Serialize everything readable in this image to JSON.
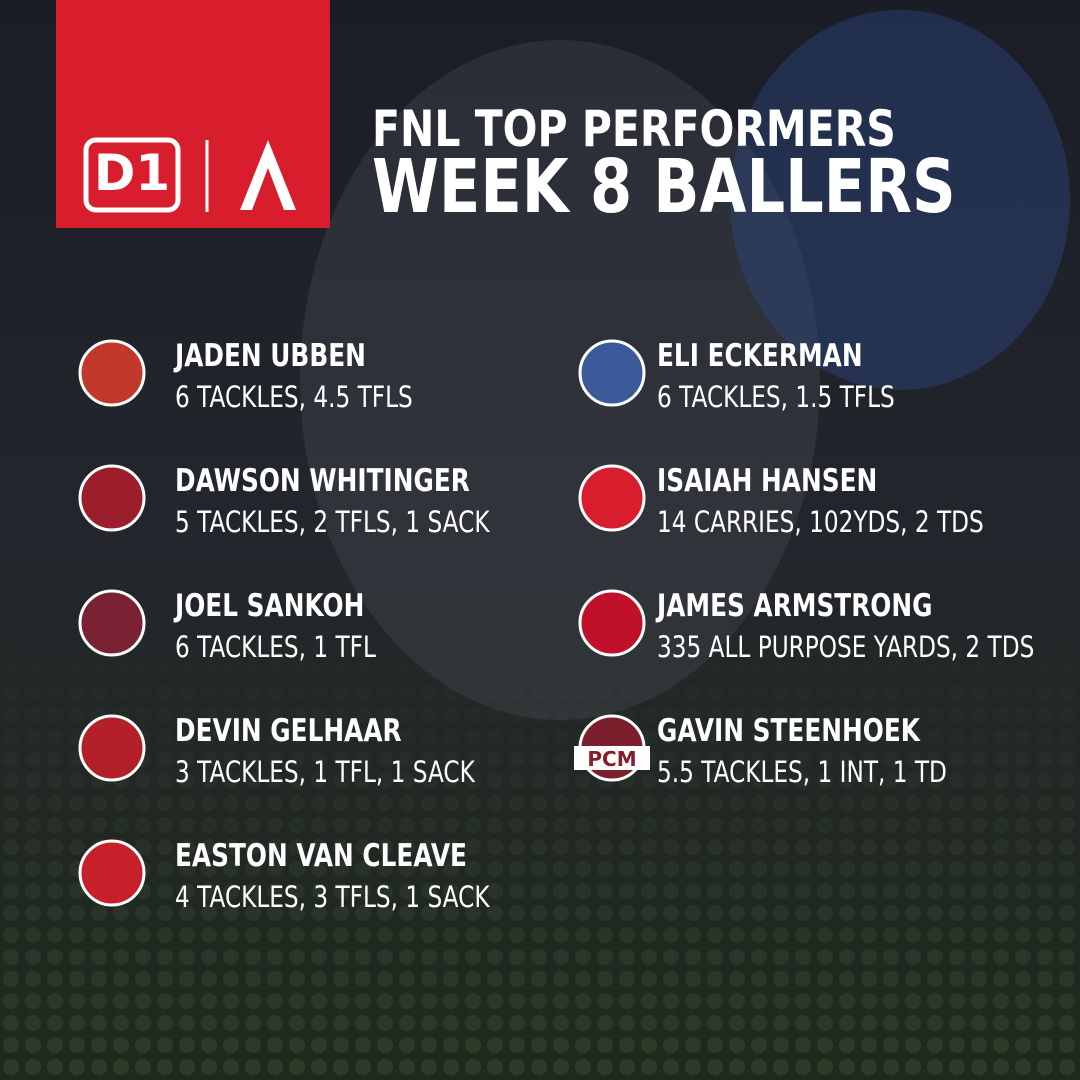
{
  "header": {
    "brand": "D1",
    "title_line1": "FNL TOP PERFORMERS",
    "title_line2": "WEEK 8 BALLERS"
  },
  "players": [
    {
      "name": "JADEN UBBEN",
      "stat": "6 TACKLES, 4.5 TFLS"
    },
    {
      "name": "DAWSON WHITINGER",
      "stat": "5 TACKLES, 2 TFLS, 1 SACK"
    },
    {
      "name": "JOEL SANKOH",
      "stat": "6 TACKLES, 1 TFL"
    },
    {
      "name": "DEVIN GELHAAR",
      "stat": "3 TACKLES, 1 TFL, 1 SACK"
    },
    {
      "name": "EASTON VAN CLEAVE",
      "stat": "4 TACKLES, 3 TFLS, 1 SACK"
    },
    {
      "name": "ELI ECKERMAN",
      "stat": "6 TACKLES, 1.5 TFLS"
    },
    {
      "name": "ISAIAH HANSEN",
      "stat": "14 CARRIES, 102YDS, 2 TDS"
    },
    {
      "name": "JAMES ARMSTRONG",
      "stat": "335 ALL PURPOSE YARDS, 2 TDS"
    },
    {
      "name": "GAVIN STEENHOEK",
      "stat": "5.5 TACKLES, 1 INT, 1 TD",
      "logo": "PCM"
    }
  ]
}
